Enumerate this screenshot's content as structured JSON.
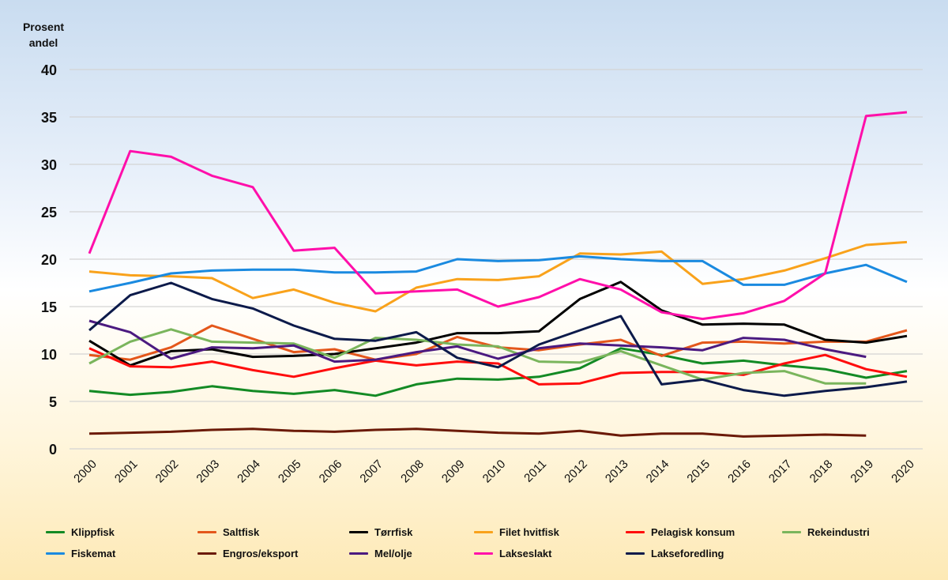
{
  "chart_data": {
    "type": "line",
    "title": "",
    "ylabel": "Prosent andel",
    "xlabel": "",
    "ylim": [
      0,
      40
    ],
    "yticks": [
      0,
      5,
      10,
      15,
      20,
      25,
      30,
      35,
      40
    ],
    "grid": true,
    "legend_position": "bottom",
    "x": [
      "2000",
      "2001",
      "2002",
      "2003",
      "2004",
      "2005",
      "2006",
      "2007",
      "2008",
      "2009",
      "2010",
      "2011",
      "2012",
      "2013",
      "2014",
      "2015",
      "2016",
      "2017",
      "2018",
      "2019",
      "2020"
    ],
    "series": [
      {
        "name": "Klippfisk",
        "color": "#138a24",
        "values": [
          6.1,
          5.7,
          6.0,
          6.6,
          6.1,
          5.8,
          6.2,
          5.6,
          6.8,
          7.4,
          7.3,
          7.6,
          8.5,
          10.6,
          9.9,
          9.0,
          9.3,
          8.8,
          8.4,
          7.5,
          8.2
        ]
      },
      {
        "name": "Saltfisk",
        "color": "#e4571b",
        "values": [
          9.9,
          9.4,
          10.7,
          13.0,
          11.6,
          10.2,
          10.5,
          9.4,
          10.0,
          11.8,
          10.7,
          10.4,
          11.0,
          11.5,
          9.8,
          11.2,
          11.3,
          11.1,
          11.3,
          11.3,
          12.5
        ]
      },
      {
        "name": "Tørrfisk",
        "color": "#000000",
        "values": [
          11.4,
          8.8,
          10.3,
          10.5,
          9.7,
          9.8,
          10.0,
          10.6,
          11.2,
          12.2,
          12.2,
          12.4,
          15.8,
          17.6,
          14.6,
          13.1,
          13.2,
          13.1,
          11.5,
          11.2,
          11.9
        ]
      },
      {
        "name": "Filet hvitfisk",
        "color": "#f9a21b",
        "values": [
          18.7,
          18.3,
          18.2,
          18.0,
          15.9,
          16.8,
          15.4,
          14.5,
          17.0,
          17.9,
          17.8,
          18.2,
          20.6,
          20.5,
          20.8,
          17.4,
          17.9,
          18.8,
          20.1,
          21.5,
          21.8
        ]
      },
      {
        "name": "Pelagisk konsum",
        "color": "#ff0d0d",
        "values": [
          10.6,
          8.7,
          8.6,
          9.2,
          8.3,
          7.6,
          8.5,
          9.3,
          8.8,
          9.2,
          9.0,
          6.8,
          6.9,
          8.0,
          8.1,
          8.1,
          7.8,
          9.0,
          9.9,
          8.4,
          7.6
        ]
      },
      {
        "name": "Rekeindustri",
        "color": "#7ab55c",
        "values": [
          9.0,
          11.3,
          12.6,
          11.3,
          11.2,
          11.1,
          9.6,
          11.7,
          11.5,
          11.0,
          10.8,
          9.2,
          9.1,
          10.3,
          8.8,
          7.3,
          8.0,
          8.2,
          6.9,
          6.9,
          null
        ]
      },
      {
        "name": "Fiskemat",
        "color": "#1a8ae0",
        "values": [
          16.6,
          17.5,
          18.5,
          18.8,
          18.9,
          18.9,
          18.6,
          18.6,
          18.7,
          20.0,
          19.8,
          19.9,
          20.3,
          20.0,
          19.8,
          19.8,
          17.3,
          17.3,
          18.5,
          19.4,
          17.6
        ]
      },
      {
        "name": "Engros/eksport",
        "color": "#6b1a07",
        "values": [
          1.6,
          1.7,
          1.8,
          2.0,
          2.1,
          1.9,
          1.8,
          2.0,
          2.1,
          1.9,
          1.7,
          1.6,
          1.9,
          1.4,
          1.6,
          1.6,
          1.3,
          1.4,
          1.5,
          1.4,
          null
        ]
      },
      {
        "name": "Mel/olje",
        "color": "#4b1a80",
        "values": [
          13.5,
          12.3,
          9.5,
          10.7,
          10.6,
          10.9,
          9.2,
          9.4,
          10.2,
          10.8,
          9.5,
          10.6,
          11.1,
          10.9,
          10.7,
          10.4,
          11.7,
          11.5,
          10.5,
          9.7,
          null
        ]
      },
      {
        "name": "Lakseslakt",
        "color": "#ff0faa",
        "values": [
          20.6,
          31.4,
          30.8,
          28.8,
          27.6,
          20.9,
          21.2,
          16.4,
          16.6,
          16.8,
          15.0,
          16.0,
          17.9,
          16.8,
          14.4,
          13.7,
          14.3,
          15.6,
          18.5,
          35.1,
          35.5
        ]
      },
      {
        "name": "Lakseforedling",
        "color": "#0c1a4a",
        "values": [
          12.5,
          16.2,
          17.5,
          15.8,
          14.8,
          13.0,
          11.6,
          11.4,
          12.3,
          9.6,
          8.6,
          11.0,
          12.5,
          14.0,
          6.8,
          7.3,
          6.2,
          5.6,
          6.1,
          6.5,
          7.1
        ]
      }
    ]
  }
}
